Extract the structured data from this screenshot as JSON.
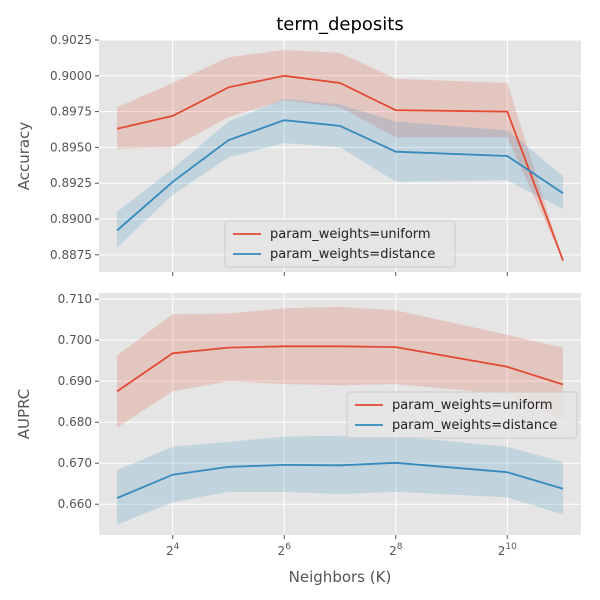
{
  "title": "term_deposits",
  "xlabel": "Neighbors (K)",
  "colors": {
    "uniform": "#e24a33",
    "distance": "#348abd"
  },
  "chart_data": [
    {
      "type": "line",
      "ylabel": "Accuracy",
      "x_scale": "log2",
      "x": [
        8,
        16,
        32,
        64,
        128,
        256,
        1024,
        2048
      ],
      "xticks": [
        16,
        64,
        256,
        1024
      ],
      "xtick_labels": [
        {
          "base": "2",
          "exp": "4"
        },
        {
          "base": "2",
          "exp": "6"
        },
        {
          "base": "2",
          "exp": "8"
        },
        {
          "base": "2",
          "exp": "10"
        }
      ],
      "ylim": [
        0.8863,
        0.9025
      ],
      "yticks": [
        0.8875,
        0.89,
        0.8925,
        0.895,
        0.8975,
        0.9,
        0.9025
      ],
      "ytick_labels": [
        "0.8875",
        "0.8900",
        "0.8925",
        "0.8950",
        "0.8975",
        "0.9000",
        "0.9025"
      ],
      "legend_position": "lower-center",
      "series": [
        {
          "name": "param_weights=uniform",
          "color_key": "uniform",
          "values": [
            0.8963,
            0.8972,
            0.8992,
            0.9,
            0.8995,
            0.8976,
            0.8975,
            0.8871
          ],
          "lower": [
            0.8949,
            0.895,
            0.8971,
            0.8983,
            0.8978,
            0.8957,
            0.8957,
            0.8871
          ],
          "upper": [
            0.8978,
            0.8995,
            0.9013,
            0.9018,
            0.9016,
            0.8998,
            0.8995,
            0.8871
          ]
        },
        {
          "name": "param_weights=distance",
          "color_key": "distance",
          "values": [
            0.8892,
            0.8926,
            0.8955,
            0.8969,
            0.8965,
            0.8947,
            0.8944,
            0.8918
          ],
          "lower": [
            0.888,
            0.8917,
            0.8943,
            0.8953,
            0.895,
            0.8926,
            0.8927,
            0.8907
          ],
          "upper": [
            0.8905,
            0.8935,
            0.8968,
            0.8984,
            0.898,
            0.8968,
            0.8962,
            0.893
          ]
        }
      ]
    },
    {
      "type": "line",
      "ylabel": "AUPRC",
      "x_scale": "log2",
      "x": [
        8,
        16,
        32,
        64,
        128,
        256,
        1024,
        2048
      ],
      "xticks": [
        16,
        64,
        256,
        1024
      ],
      "xtick_labels": [
        {
          "base": "2",
          "exp": "4"
        },
        {
          "base": "2",
          "exp": "6"
        },
        {
          "base": "2",
          "exp": "8"
        },
        {
          "base": "2",
          "exp": "10"
        }
      ],
      "ylim": [
        0.6525,
        0.7115
      ],
      "yticks": [
        0.66,
        0.67,
        0.68,
        0.69,
        0.7,
        0.71
      ],
      "ytick_labels": [
        "0.660",
        "0.670",
        "0.680",
        "0.690",
        "0.700",
        "0.710"
      ],
      "legend_position": "center-right",
      "series": [
        {
          "name": "param_weights=uniform",
          "color_key": "uniform",
          "values": [
            0.6875,
            0.6968,
            0.6982,
            0.6985,
            0.6985,
            0.6983,
            0.6935,
            0.6892
          ],
          "lower": [
            0.6787,
            0.6875,
            0.69,
            0.6893,
            0.689,
            0.6893,
            0.6868,
            0.681
          ],
          "upper": [
            0.6963,
            0.7063,
            0.7065,
            0.7078,
            0.7081,
            0.7073,
            0.7013,
            0.6982
          ]
        },
        {
          "name": "param_weights=distance",
          "color_key": "distance",
          "values": [
            0.6615,
            0.6672,
            0.6691,
            0.6696,
            0.6695,
            0.6701,
            0.6678,
            0.6638
          ],
          "lower": [
            0.655,
            0.6605,
            0.663,
            0.663,
            0.6625,
            0.663,
            0.6617,
            0.6575
          ],
          "upper": [
            0.6683,
            0.674,
            0.6752,
            0.6765,
            0.6767,
            0.6766,
            0.674,
            0.6703
          ]
        }
      ]
    }
  ]
}
